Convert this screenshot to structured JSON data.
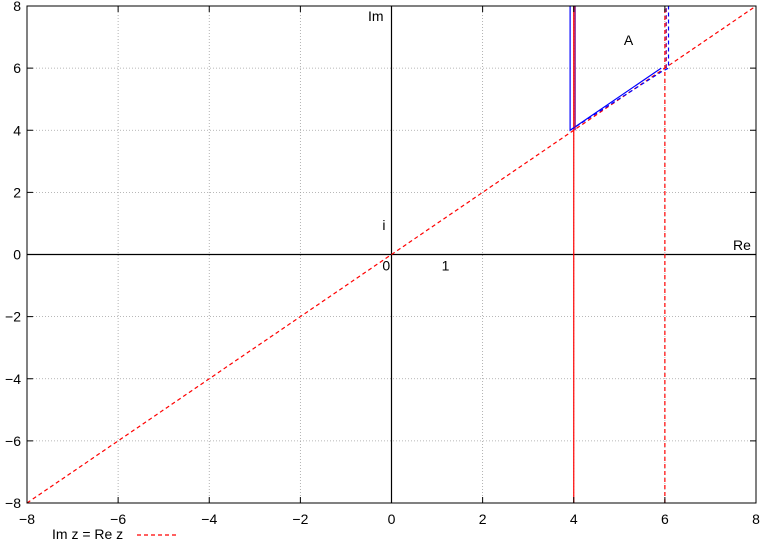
{
  "chart_data": {
    "type": "line",
    "title": "",
    "xlabel": "",
    "ylabel": "",
    "xlim": [
      -8,
      8
    ],
    "ylim": [
      -8,
      8
    ],
    "grid": true,
    "x_ticks": [
      -8,
      -6,
      -4,
      -2,
      0,
      2,
      4,
      6,
      8
    ],
    "y_ticks": [
      -8,
      -6,
      -4,
      -2,
      0,
      2,
      4,
      6,
      8
    ],
    "x_tick_labels": [
      "−8",
      "−6",
      "−4",
      "−2",
      "0",
      "2",
      "4",
      "6",
      "8"
    ],
    "y_tick_labels": [
      "−8",
      "−6",
      "−4",
      "−2",
      "0",
      "2",
      "4",
      "6",
      "8"
    ],
    "axis_labels": {
      "real": "Re",
      "imag": "Im"
    },
    "annotations": [
      {
        "text": "0",
        "x": -0.2,
        "y": -0.35
      },
      {
        "text": "1",
        "x": 1.1,
        "y": -0.35
      },
      {
        "text": "i",
        "x": -0.2,
        "y": 0.95
      },
      {
        "text": "A",
        "x": 5.1,
        "y": 6.9
      }
    ],
    "legend": {
      "placement": "bottom-left",
      "entries": [
        {
          "label": "Im z = Re z",
          "color": "#ff0000",
          "style": "dashed"
        }
      ]
    },
    "series": [
      {
        "name": "Im z = Re z",
        "color": "#ff0000",
        "style": "dashed",
        "x": [
          -8,
          8
        ],
        "y": [
          -8,
          8
        ]
      },
      {
        "color": "#ff0000",
        "style": "solid",
        "x": [
          4,
          4
        ],
        "y": [
          -8,
          8
        ]
      },
      {
        "color": "#ff0000",
        "style": "dashed",
        "x": [
          6,
          6
        ],
        "y": [
          -8,
          8
        ]
      },
      {
        "color": "#0000ff",
        "style": "solid",
        "x": [
          3.92,
          3.92,
          5.92
        ],
        "y": [
          8,
          4,
          6
        ]
      },
      {
        "color": "#0000ff",
        "style": "dashed",
        "x": [
          3.92,
          5.92,
          6.08,
          6.08
        ],
        "y": [
          4,
          5.88,
          6,
          8
        ]
      },
      {
        "color": "#800080",
        "style": "solid",
        "x": [
          4.03,
          4.03
        ],
        "y": [
          4,
          8
        ]
      },
      {
        "color": "#800080",
        "style": "dashed",
        "x": [
          6.03,
          6.03
        ],
        "y": [
          6,
          8
        ]
      }
    ]
  }
}
